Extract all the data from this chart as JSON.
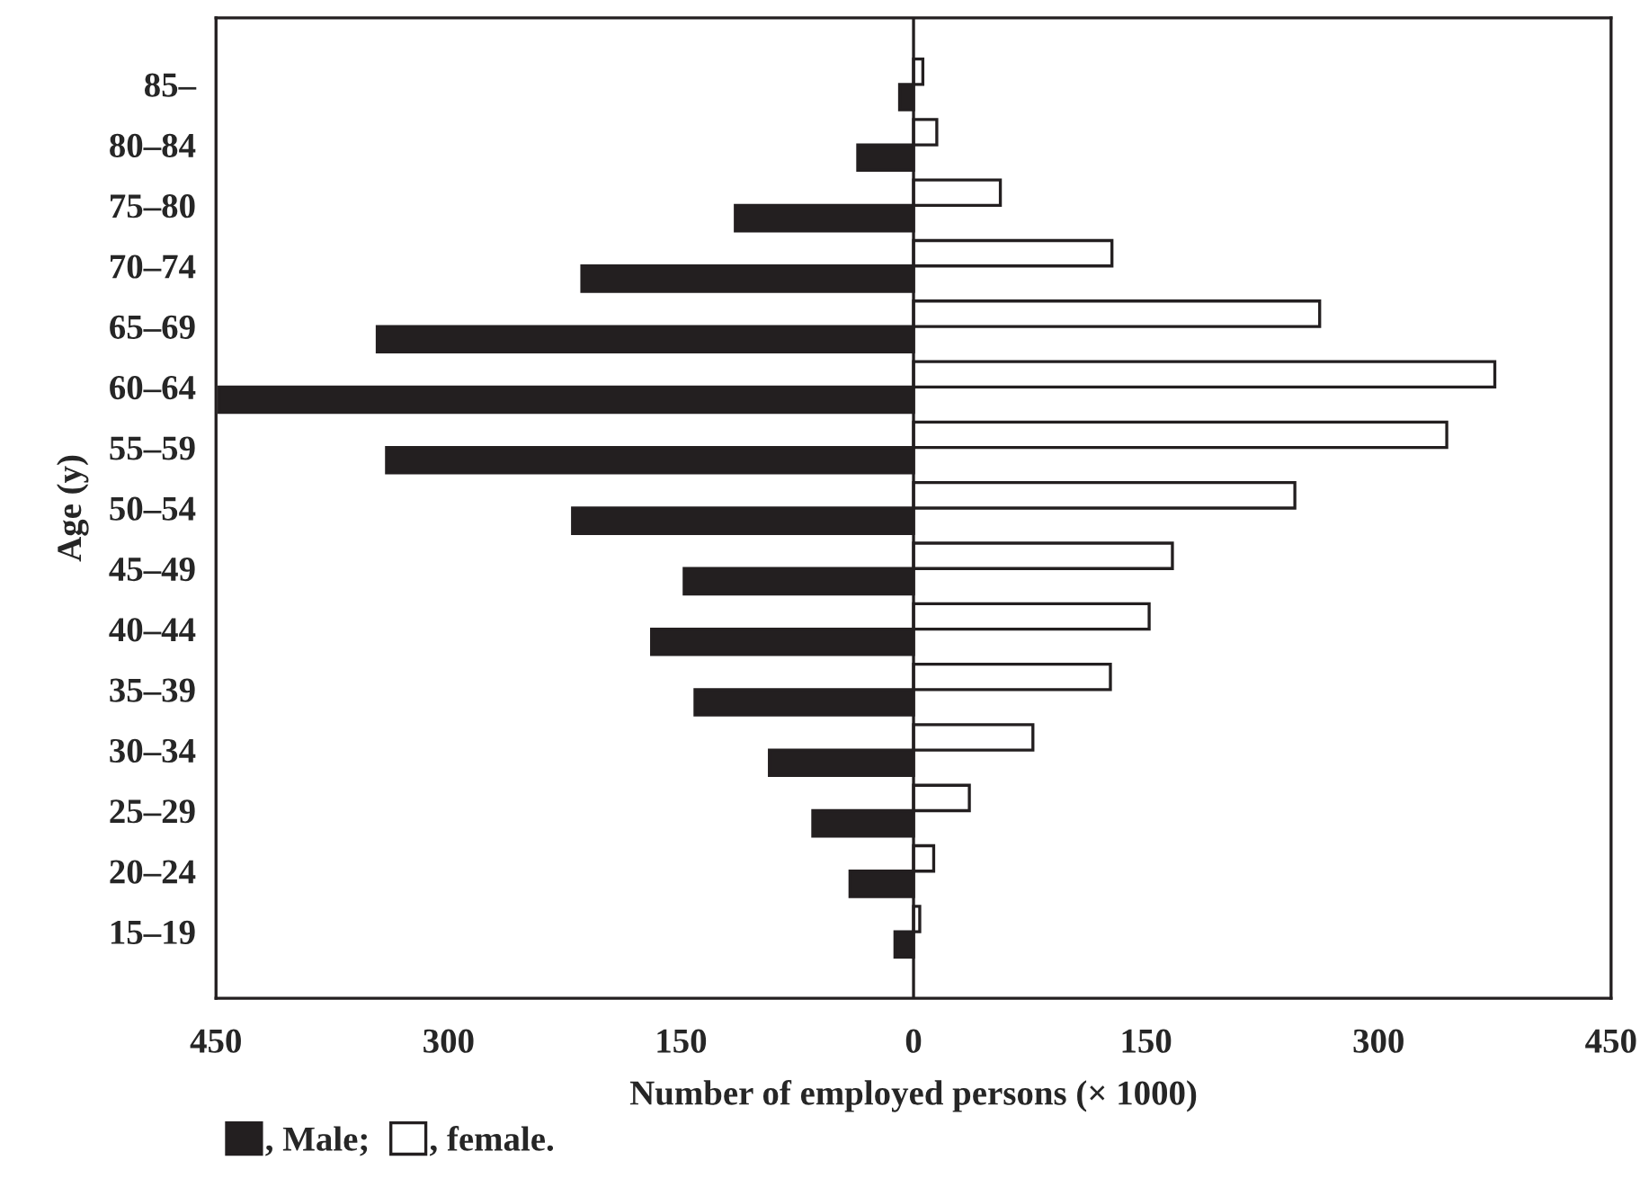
{
  "chart_data": {
    "type": "bar",
    "orientation": "horizontal",
    "xlabel": "Number of employed persons (× 1000)",
    "ylabel": "Age (y)",
    "categories": [
      "85–",
      "80–84",
      "75–80",
      "70–74",
      "65–69",
      "60–64",
      "55–59",
      "50–54",
      "45–49",
      "40–44",
      "35–39",
      "30–34",
      "25–29",
      "20–24",
      "15–19"
    ],
    "series": [
      {
        "name": ", Male;",
        "color": "#231f20",
        "values": [
          -9,
          -36,
          -115,
          -214,
          -346,
          -448,
          -340,
          -220,
          -148,
          -169,
          -141,
          -93,
          -65,
          -41,
          -12
        ]
      },
      {
        "name": ", female.",
        "color": "#ffffff",
        "values": [
          6,
          15,
          56,
          128,
          262,
          375,
          344,
          246,
          167,
          152,
          127,
          77,
          36,
          13,
          4
        ]
      }
    ],
    "xlim": [
      -450,
      450
    ],
    "xticks": [
      {
        "value": -450,
        "label": "450"
      },
      {
        "value": -300,
        "label": "300"
      },
      {
        "value": -150,
        "label": "150"
      },
      0,
      150,
      300,
      450
    ],
    "ref_lines": [
      {
        "axis": "x",
        "value": 0
      }
    ],
    "grid": false,
    "legend": "bottom"
  }
}
